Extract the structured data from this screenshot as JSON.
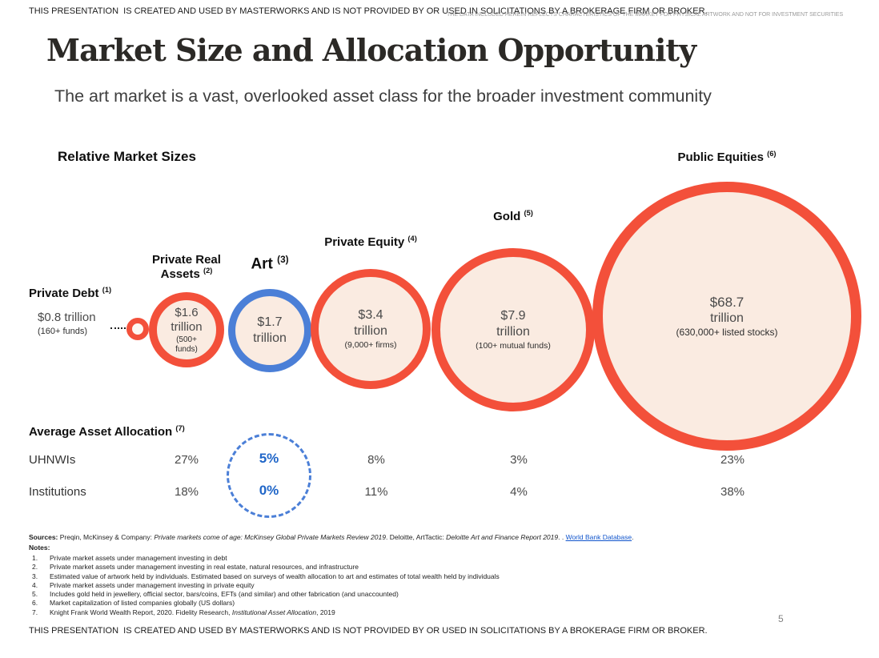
{
  "colors": {
    "accent_red": "#F3503A",
    "accent_blue": "#4B7FD7",
    "bubble_fill": "#FAEBE1",
    "art_value_blue": "#2066C8",
    "link_blue": "#1155CC"
  },
  "disclaimers": {
    "top": "THIS PRESENTATION  IS CREATED AND USED BY MASTERWORKS AND IS NOT PROVIDED BY OR USED IN SOLICITATIONS BY A BROKERAGE FIRM OR BROKER.",
    "overlay": "THE DATA INCLUDED HEREIN REFLECTS CHARACTERISTICS OF THE MARKET FOR PHYSICAL ARTWORK AND NOT FOR INVESTMENT SECURITIES",
    "bottom": "THIS PRESENTATION  IS CREATED AND USED BY MASTERWORKS AND IS NOT PROVIDED BY OR USED IN SOLICITATIONS BY A BROKERAGE FIRM OR BROKER."
  },
  "header": {
    "title": "Market Size and Allocation Opportunity",
    "subtitle": "The art market is a vast, overlooked asset class for the broader investment community"
  },
  "chart_data": {
    "type": "bubble",
    "title": "Relative Market Sizes",
    "unit": "USD trillions",
    "highlight": "Art",
    "bubbles": [
      {
        "name": "Private Debt",
        "ref": "(1)",
        "value_trillions": 0.8,
        "value": "$0.8 trillion",
        "unit": "",
        "detail": "(160+ funds)",
        "color": "red"
      },
      {
        "name": "Private Real Assets",
        "ref": "(2)",
        "value_trillions": 1.6,
        "value": "$1.6",
        "unit": "trillion",
        "detail": "(500+ funds)",
        "color": "red"
      },
      {
        "name": "Art",
        "ref": "(3)",
        "value_trillions": 1.7,
        "value": "$1.7",
        "unit": "trillion",
        "detail": "",
        "color": "blue"
      },
      {
        "name": "Private Equity",
        "ref": "(4)",
        "value_trillions": 3.4,
        "value": "$3.4",
        "unit": "trillion",
        "detail": "(9,000+ firms)",
        "color": "red"
      },
      {
        "name": "Gold",
        "ref": "(5)",
        "value_trillions": 7.9,
        "value": "$7.9",
        "unit": "trillion",
        "detail": "(100+ mutual funds)",
        "color": "red"
      },
      {
        "name": "Public Equities",
        "ref": "(6)",
        "value_trillions": 68.7,
        "value": "$68.7",
        "unit": "trillion",
        "detail": "(630,000+ listed stocks)",
        "color": "red"
      }
    ],
    "allocation": {
      "heading": "Average Asset Allocation",
      "ref": "(7)",
      "columns": [
        "Private Real Assets",
        "Art",
        "Private Equity",
        "Gold",
        "Public Equities"
      ],
      "rows": [
        {
          "label": "UHNWIs",
          "values": [
            "27%",
            "5%",
            "8%",
            "3%",
            "23%"
          ]
        },
        {
          "label": "Institutions",
          "values": [
            "18%",
            "0%",
            "11%",
            "4%",
            "38%"
          ]
        }
      ]
    }
  },
  "sources": {
    "label": "Sources:",
    "s1": " Preqin, McKinsey & Company: ",
    "i1": "Private markets come of age: McKinsey Global Private Markets Review 2019",
    "s2": ". Deloitte, ArtTactic: ",
    "i2": "Deloitte Art and Finance Report 2019",
    "s3": ". . ",
    "link": "World Bank Database",
    "s4": "."
  },
  "notes": {
    "heading": "Notes:",
    "items": [
      {
        "num": "1.",
        "text": "Private market assets under management investing in debt"
      },
      {
        "num": "2.",
        "text": "Private market assets under management investing in real estate, natural resources, and infrastructure"
      },
      {
        "num": "3.",
        "text": "Estimated value of artwork held by individuals. Estimated based on surveys of wealth allocation to art and estimates of total wealth held by individuals"
      },
      {
        "num": "4.",
        "text": "Private market assets under management investing in private equity"
      },
      {
        "num": "5.",
        "text": "Includes gold held in jewellery, official sector, bars/coins, EFTs (and similar) and other fabrication (and unaccounted)"
      },
      {
        "num": "6.",
        "text": "Market capitalization of listed companies globally (US dollars)"
      },
      {
        "num": "7.",
        "text": "Knight Frank World Wealth Report, 2020. Fidelity Research, ",
        "italic": "Institutional Asset Allocation",
        "suffix": ", 2019"
      }
    ]
  },
  "footer": {
    "page_number": "5"
  }
}
